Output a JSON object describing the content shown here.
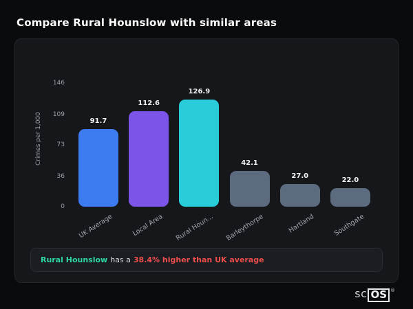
{
  "page_title": "Compare Rural Hounslow with similar areas",
  "chart_data": {
    "type": "bar",
    "title": "",
    "xlabel": "",
    "ylabel": "Crimes per 1,000",
    "categories": [
      "UK Average",
      "Local Area",
      "Rural Houn...",
      "Barleythorpe",
      "Hartland",
      "Southgate"
    ],
    "values": [
      91.7,
      112.6,
      126.9,
      42.1,
      27.0,
      22.0
    ],
    "value_labels": [
      "91.7",
      "112.6",
      "126.9",
      "42.1",
      "27.0",
      "22.0"
    ],
    "bar_colors": [
      "#3d7bf0",
      "#7c55e8",
      "#28cdd9",
      "#5c6b80",
      "#5c6b80",
      "#5c6b80"
    ],
    "yticks": [
      146,
      109,
      73,
      36,
      0
    ],
    "ylim": [
      0,
      146
    ],
    "grid": false,
    "legend": "none",
    "highlight_color": "#28cdd9",
    "background_color": "#15171b"
  },
  "note": {
    "subject": "Rural Hounslow",
    "middle": "has a",
    "stat": "38.4% higher than UK average",
    "subject_color": "#2fd6a4",
    "stat_color": "#ef4d4d"
  },
  "branding": {
    "logo_prefix": "sc",
    "logo_suffix": "OS",
    "registered": "®"
  }
}
